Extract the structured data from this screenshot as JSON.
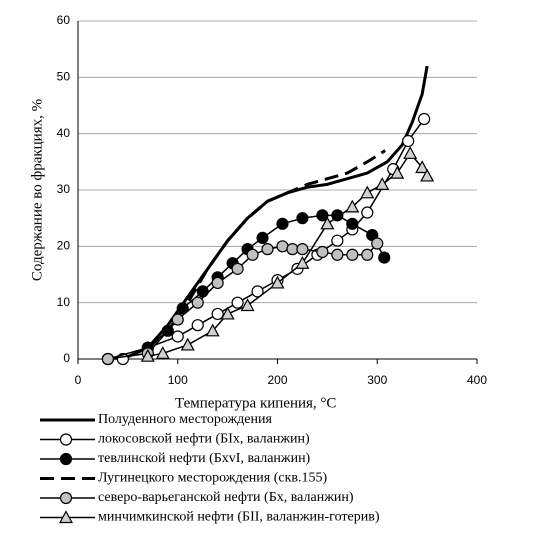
{
  "chart_data": {
    "type": "line",
    "x_label": "Температура кипения, °C",
    "y_label": "Содержание во фракциях, %",
    "xlim": [
      0,
      400
    ],
    "xticks": [
      0,
      100,
      200,
      300,
      400
    ],
    "ylim": [
      0,
      60
    ],
    "yticks": [
      0,
      10,
      20,
      30,
      40,
      50,
      60
    ],
    "grid": true,
    "legend": "bottom",
    "series": [
      {
        "name": "Полуденного месторождения",
        "color": "#000000",
        "marker": "none",
        "dash": "solid",
        "width": 3,
        "x": [
          45,
          70,
          90,
          110,
          130,
          150,
          170,
          190,
          210,
          230,
          250,
          270,
          290,
          310,
          325,
          335,
          345,
          350
        ],
        "values": [
          0,
          2,
          6,
          11,
          16,
          21,
          25,
          28,
          29.5,
          30.5,
          31,
          32,
          33,
          35,
          38,
          42,
          47,
          52
        ]
      },
      {
        "name": "локосовской нефти (БIx, валанжин)",
        "color": "#000000",
        "marker": "circle",
        "marker_fill": "#ffffff",
        "dash": "solid",
        "width": 1.5,
        "x": [
          30,
          45,
          70,
          100,
          120,
          140,
          160,
          180,
          200,
          220,
          240,
          260,
          275,
          290,
          316,
          331,
          347
        ],
        "values": [
          0,
          0,
          2,
          4,
          6,
          8,
          10,
          12,
          14,
          16,
          18.5,
          21,
          23,
          26,
          33.7,
          38.7,
          42.6
        ]
      },
      {
        "name": " тевлинской нефти (БxvI, валанжин)",
        "color": "#000000",
        "marker": "circle",
        "marker_fill": "#000000",
        "dash": "solid",
        "width": 1.5,
        "x": [
          30,
          70,
          90,
          105,
          125,
          140,
          155,
          170,
          185,
          205,
          225,
          245,
          260,
          275,
          295,
          307
        ],
        "values": [
          0,
          2,
          5,
          9,
          12,
          14.5,
          17,
          19.5,
          21.5,
          24,
          25,
          25.5,
          25.5,
          24,
          22,
          18
        ]
      },
      {
        "name": "Лугинецкого месторождения (скв.155)",
        "color": "#000000",
        "marker": "none",
        "dash": "dashed",
        "width": 3,
        "x": [
          70,
          90,
          110,
          130,
          150,
          170,
          190,
          210,
          230,
          250,
          270,
          290,
          308
        ],
        "values": [
          2,
          5,
          10,
          16,
          21,
          25,
          28,
          29.5,
          31,
          32,
          33,
          35,
          37
        ]
      },
      {
        "name": "северо-варьеганской нефти (Бx, валанжин)",
        "color": "#000000",
        "marker": "circle",
        "marker_fill": "#c0c0c0",
        "dash": "solid",
        "width": 1.5,
        "x": [
          30,
          70,
          100,
          120,
          140,
          160,
          175,
          190,
          205,
          215,
          225,
          245,
          260,
          275,
          290,
          300
        ],
        "values": [
          0,
          1,
          7,
          10,
          13.5,
          16,
          18.5,
          19.5,
          20,
          19.5,
          19.5,
          19,
          18.5,
          18.5,
          18.5,
          20.5
        ]
      },
      {
        "name": "минчимкинской нефти (БII, валанжин-готерив)",
        "color": "#000000",
        "marker": "triangle",
        "marker_fill": "#d0d0d0",
        "dash": "solid",
        "width": 1.5,
        "x": [
          70,
          85,
          110,
          135,
          150,
          170,
          200,
          225,
          250,
          275,
          290,
          305,
          320,
          333,
          345,
          350
        ],
        "values": [
          0.5,
          1,
          2.5,
          5,
          8,
          9.5,
          13.5,
          17,
          24,
          27,
          29.5,
          31,
          33,
          36.5,
          34,
          32.5
        ]
      }
    ]
  }
}
